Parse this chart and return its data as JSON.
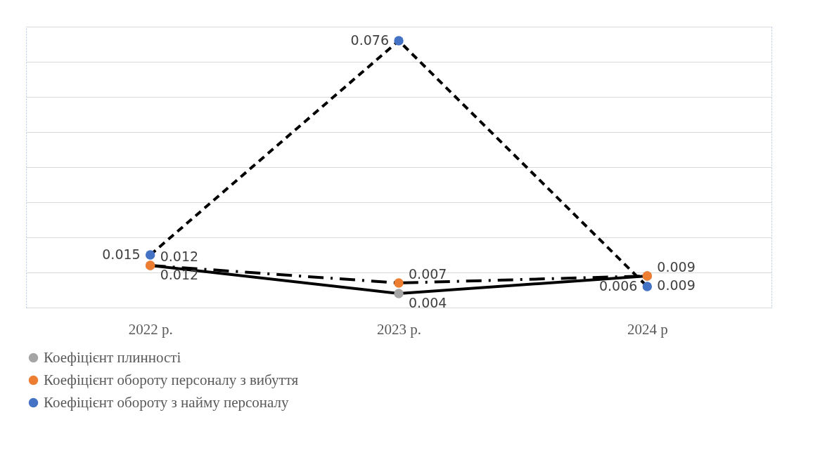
{
  "chart_data": {
    "type": "line",
    "categories": [
      "2022 р.",
      "2023 р.",
      "2024 р"
    ],
    "series": [
      {
        "name": "Коефіцієнт плинності",
        "color": "#a5a5a5",
        "line_style": "solid",
        "values": [
          0.012,
          0.004,
          0.009
        ]
      },
      {
        "name": "Коефіцієнт обороту персоналу з вибуття",
        "color": "#ed7d31",
        "line_style": "dashed",
        "values": [
          0.012,
          0.007,
          0.009
        ]
      },
      {
        "name": "Коефіцієнт обороту з найму персоналу",
        "color": "#4472c4",
        "line_style": "dotted",
        "values": [
          0.015,
          0.076,
          0.006
        ]
      }
    ],
    "tick_labels": "x",
    "grid": "y",
    "legend": "bottom",
    "marker": "circle",
    "data_labels": true
  }
}
